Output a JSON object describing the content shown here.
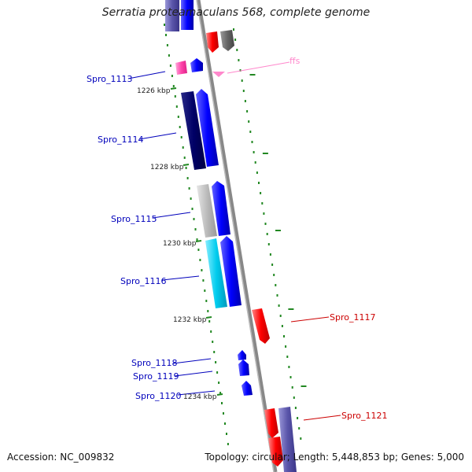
{
  "title": "Serratia proteamaculans 568, complete genome",
  "accession": "Accession: NC_009832",
  "summary": "Topology: circular; Length: 5,448,853 bp; Genes: 5,000",
  "colors": {
    "forward_cds": "#0000ee",
    "reverse_cds": "#ff0000",
    "rna": "#ff88cc",
    "backbone": "#888888",
    "ticks": "#228822"
  },
  "ticks": [
    "1226 kbp",
    "1228 kbp",
    "1230 kbp",
    "1232 kbp",
    "1234 kbp"
  ],
  "genes": [
    {
      "label": "Spro_1113",
      "color": "#0000bb"
    },
    {
      "label": "Spro_1114",
      "color": "#0000bb"
    },
    {
      "label": "Spro_1115",
      "color": "#0000bb"
    },
    {
      "label": "Spro_1116",
      "color": "#0000bb"
    },
    {
      "label": "Spro_1117",
      "color": "#cc0000"
    },
    {
      "label": "Spro_1118",
      "color": "#0000bb"
    },
    {
      "label": "Spro_1119",
      "color": "#0000bb"
    },
    {
      "label": "Spro_1120",
      "color": "#0000bb"
    },
    {
      "label": "Spro_1121",
      "color": "#cc0000"
    }
  ],
  "rna_label": "ffs"
}
